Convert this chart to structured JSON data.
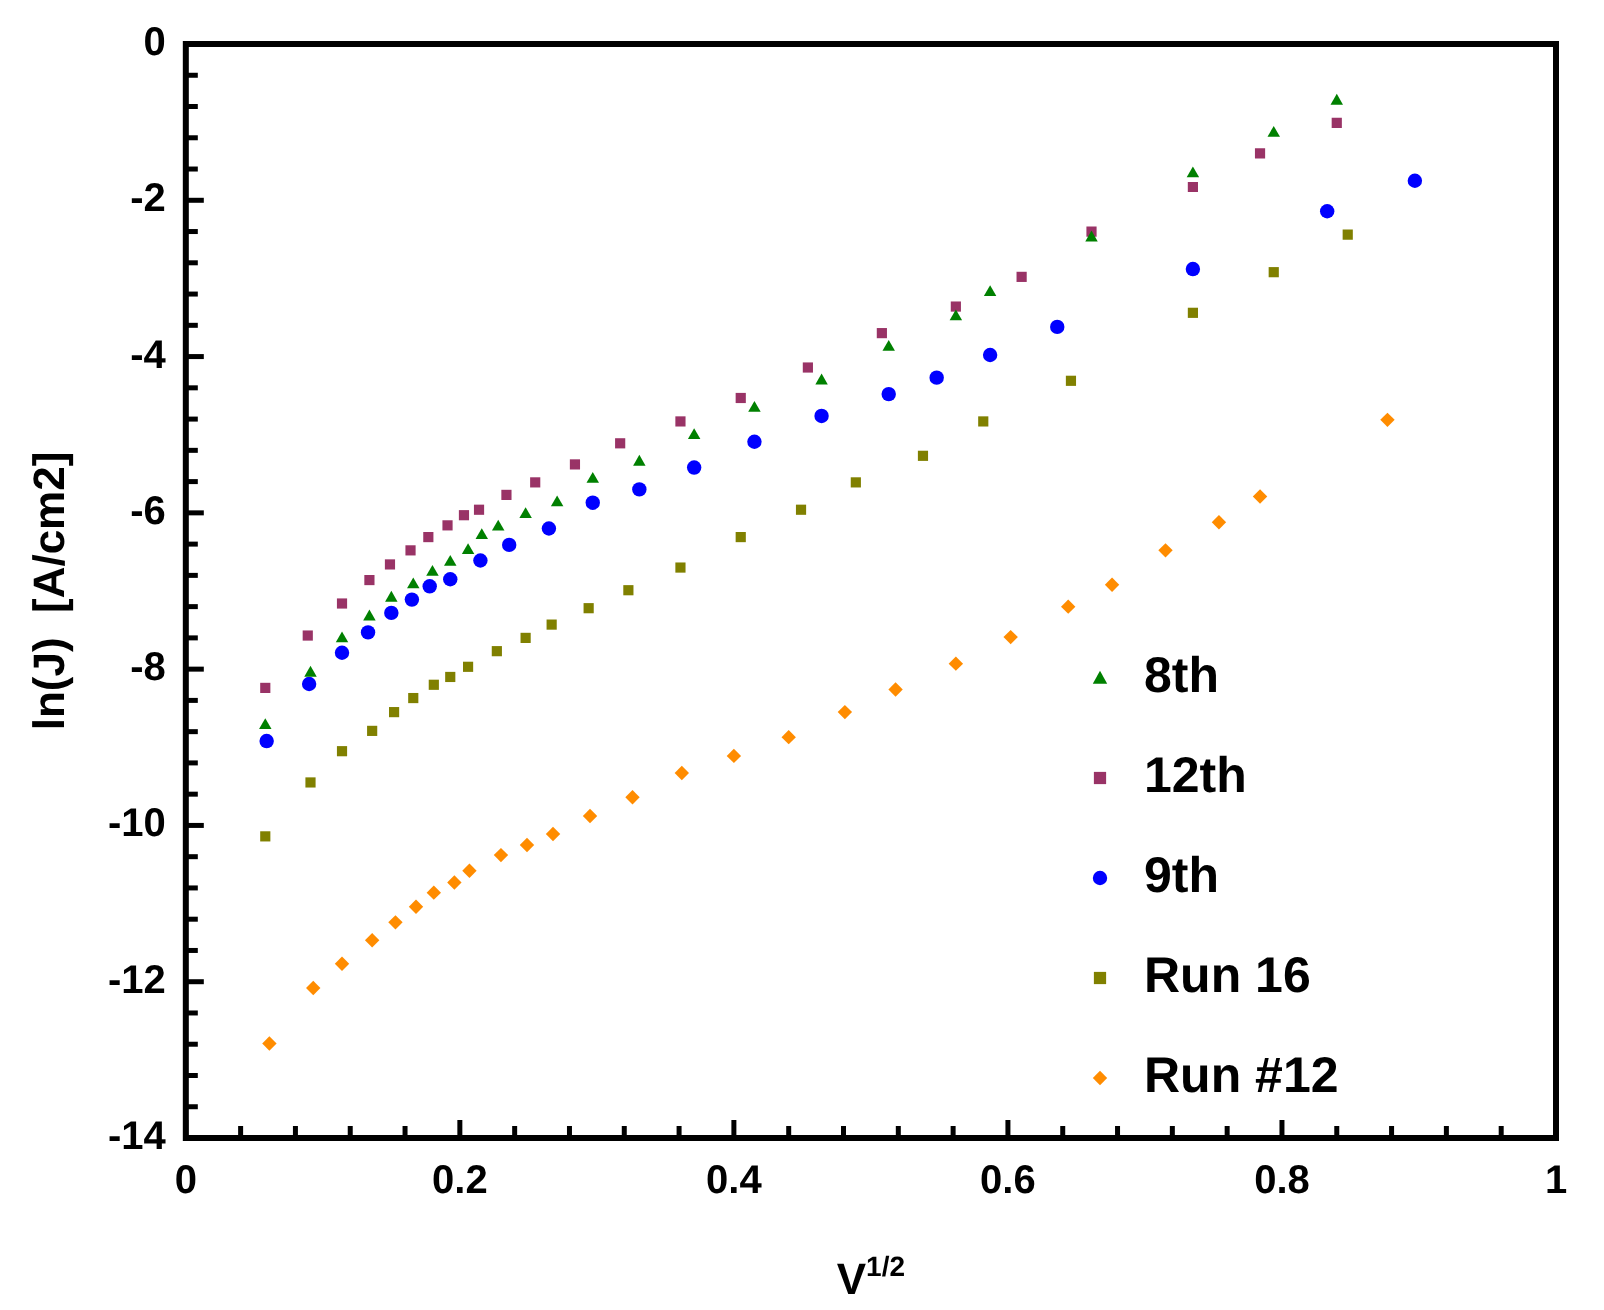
{
  "chart_data": {
    "type": "scatter",
    "xlabel": "V$^{1/2}$",
    "ylabel": "ln(J)  [A/cm2]",
    "xlim": [
      0,
      1
    ],
    "xticks": [
      0,
      {
        "value": 0.04,
        "label": null
      },
      {
        "value": 0.08,
        "label": null
      },
      {
        "value": 0.12,
        "label": null
      },
      {
        "value": 0.16,
        "label": null
      },
      0.2,
      {
        "value": 0.24,
        "label": null
      },
      {
        "value": 0.28,
        "label": null
      },
      {
        "value": 0.32,
        "label": null
      },
      {
        "value": 0.36,
        "label": null
      },
      0.4,
      {
        "value": 0.44,
        "label": null
      },
      {
        "value": 0.48,
        "label": null
      },
      {
        "value": 0.52,
        "label": null
      },
      {
        "value": 0.56,
        "label": null
      },
      0.6,
      {
        "value": 0.64,
        "label": null
      },
      {
        "value": 0.68,
        "label": null
      },
      {
        "value": 0.72,
        "label": null
      },
      {
        "value": 0.76,
        "label": null
      },
      0.8,
      {
        "value": 0.84,
        "label": null
      },
      {
        "value": 0.88,
        "label": null
      },
      {
        "value": 0.92,
        "label": null
      },
      {
        "value": 0.96,
        "label": null
      },
      1
    ],
    "ylim": [
      -14,
      0
    ],
    "yticks": [
      -14,
      {
        "value": -13.6,
        "label": null
      },
      {
        "value": -13.2,
        "label": null
      },
      {
        "value": -12.8,
        "label": null
      },
      {
        "value": -12.4,
        "label": null
      },
      -12,
      {
        "value": -11.6,
        "label": null
      },
      {
        "value": -11.2,
        "label": null
      },
      {
        "value": -10.8,
        "label": null
      },
      {
        "value": -10.4,
        "label": null
      },
      -10,
      {
        "value": -9.6,
        "label": null
      },
      {
        "value": -9.2,
        "label": null
      },
      {
        "value": -8.8,
        "label": null
      },
      {
        "value": -8.4,
        "label": null
      },
      -8,
      {
        "value": -7.6,
        "label": null
      },
      {
        "value": -7.2,
        "label": null
      },
      {
        "value": -6.8,
        "label": null
      },
      {
        "value": -6.4,
        "label": null
      },
      -6,
      {
        "value": -5.6,
        "label": null
      },
      {
        "value": -5.2,
        "label": null
      },
      {
        "value": -4.8,
        "label": null
      },
      {
        "value": -4.4,
        "label": null
      },
      -4,
      {
        "value": -3.6,
        "label": null
      },
      {
        "value": -3.2,
        "label": null
      },
      {
        "value": -2.8,
        "label": null
      },
      {
        "value": -2.4,
        "label": null
      },
      -2,
      {
        "value": -1.6,
        "label": null
      },
      {
        "value": -1.2,
        "label": null
      },
      {
        "value": -0.8,
        "label": null
      },
      {
        "value": -0.4,
        "label": null
      },
      0
    ],
    "grid": false,
    "legend": "bottom right",
    "series": [
      {
        "name": "8th",
        "color": "#008000",
        "marker": "triangle",
        "x": [
          0.058,
          0.091,
          0.114,
          0.134,
          0.15,
          0.166,
          0.18,
          0.193,
          0.206,
          0.216,
          0.228,
          0.248,
          0.271,
          0.297,
          0.331,
          0.371,
          0.415,
          0.464,
          0.513,
          0.562,
          0.587,
          0.661,
          0.735,
          0.794,
          0.84
        ],
        "values": [
          -8.72,
          -8.05,
          -7.61,
          -7.33,
          -7.09,
          -6.92,
          -6.76,
          -6.63,
          -6.48,
          -6.29,
          -6.18,
          -6.02,
          -5.87,
          -5.57,
          -5.35,
          -5.01,
          -4.66,
          -4.31,
          -3.88,
          -3.49,
          -3.18,
          -2.48,
          -1.66,
          -1.14,
          -0.73
        ]
      },
      {
        "name": "12th",
        "color": "#993366",
        "marker": "square",
        "x": [
          0.058,
          0.089,
          0.114,
          0.134,
          0.149,
          0.164,
          0.177,
          0.191,
          0.203,
          0.214,
          0.234,
          0.255,
          0.284,
          0.317,
          0.361,
          0.405,
          0.454,
          0.508,
          0.562,
          0.61,
          0.661,
          0.735,
          0.784,
          0.84
        ],
        "values": [
          -8.24,
          -7.57,
          -7.16,
          -6.86,
          -6.66,
          -6.48,
          -6.31,
          -6.16,
          -6.03,
          -5.96,
          -5.77,
          -5.61,
          -5.38,
          -5.11,
          -4.83,
          -4.53,
          -4.14,
          -3.7,
          -3.36,
          -2.98,
          -2.4,
          -1.83,
          -1.4,
          -1.01
        ]
      },
      {
        "name": "9th",
        "color": "#0000ff",
        "marker": "circle",
        "x": [
          0.059,
          0.09,
          0.114,
          0.133,
          0.15,
          0.165,
          0.178,
          0.193,
          0.215,
          0.236,
          0.265,
          0.297,
          0.331,
          0.371,
          0.415,
          0.464,
          0.513,
          0.548,
          0.587,
          0.636,
          0.735,
          0.833,
          0.897
        ],
        "values": [
          -8.92,
          -8.19,
          -7.79,
          -7.53,
          -7.28,
          -7.11,
          -6.94,
          -6.85,
          -6.61,
          -6.41,
          -6.2,
          -5.87,
          -5.7,
          -5.42,
          -5.09,
          -4.76,
          -4.48,
          -4.27,
          -3.98,
          -3.62,
          -2.88,
          -2.14,
          -1.75
        ]
      },
      {
        "name": "Run 16",
        "color": "#808000",
        "marker": "square",
        "x": [
          0.058,
          0.091,
          0.114,
          0.136,
          0.152,
          0.166,
          0.181,
          0.193,
          0.206,
          0.227,
          0.248,
          0.267,
          0.294,
          0.323,
          0.361,
          0.405,
          0.449,
          0.489,
          0.538,
          0.582,
          0.646,
          0.735,
          0.794,
          0.848
        ],
        "values": [
          -10.14,
          -9.45,
          -9.05,
          -8.79,
          -8.55,
          -8.37,
          -8.2,
          -8.1,
          -7.97,
          -7.77,
          -7.6,
          -7.43,
          -7.22,
          -6.99,
          -6.7,
          -6.31,
          -5.96,
          -5.61,
          -5.27,
          -4.83,
          -4.31,
          -3.44,
          -2.92,
          -2.44
        ]
      },
      {
        "name": "Run #12",
        "color": "#ff8c00",
        "marker": "diamond",
        "x": [
          0.061,
          0.093,
          0.114,
          0.136,
          0.153,
          0.168,
          0.181,
          0.196,
          0.207,
          0.23,
          0.249,
          0.268,
          0.295,
          0.326,
          0.362,
          0.4,
          0.44,
          0.481,
          0.518,
          0.562,
          0.602,
          0.644,
          0.676,
          0.715,
          0.754,
          0.784,
          0.877
        ],
        "values": [
          -12.79,
          -12.08,
          -11.77,
          -11.47,
          -11.24,
          -11.04,
          -10.86,
          -10.73,
          -10.58,
          -10.38,
          -10.25,
          -10.11,
          -9.88,
          -9.64,
          -9.33,
          -9.11,
          -8.87,
          -8.55,
          -8.26,
          -7.93,
          -7.59,
          -7.2,
          -6.92,
          -6.48,
          -6.12,
          -5.79,
          -4.81
        ]
      }
    ]
  }
}
